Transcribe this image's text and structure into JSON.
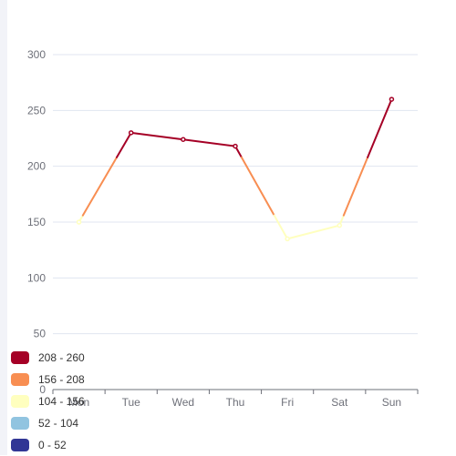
{
  "chart_data": {
    "type": "line",
    "categories": [
      "Mon",
      "Tue",
      "Wed",
      "Thu",
      "Fri",
      "Sat",
      "Sun"
    ],
    "series": [
      {
        "values": [
          150,
          230,
          224,
          218,
          135,
          147,
          260
        ]
      }
    ],
    "y_ticks": [
      0,
      50,
      100,
      150,
      200,
      250,
      300
    ],
    "ylim": [
      0,
      300
    ],
    "grid": true,
    "visual_map": {
      "type": "piecewise",
      "placement": "bottom-left",
      "pieces": [
        {
          "label": "208 - 260",
          "min": 208,
          "max": 260,
          "color": "#a50026"
        },
        {
          "label": "156 - 208",
          "min": 156,
          "max": 208,
          "color": "#f88e52"
        },
        {
          "label": "104 - 156",
          "min": 104,
          "max": 156,
          "color": "#ffffbf"
        },
        {
          "label": "52 - 104",
          "min": 52,
          "max": 104,
          "color": "#91c4e0"
        },
        {
          "label": "0 - 52",
          "min": 0,
          "max": 52,
          "color": "#313695"
        }
      ]
    },
    "axis_color": "#6e7079",
    "grid_color": "#e0e6f1"
  }
}
